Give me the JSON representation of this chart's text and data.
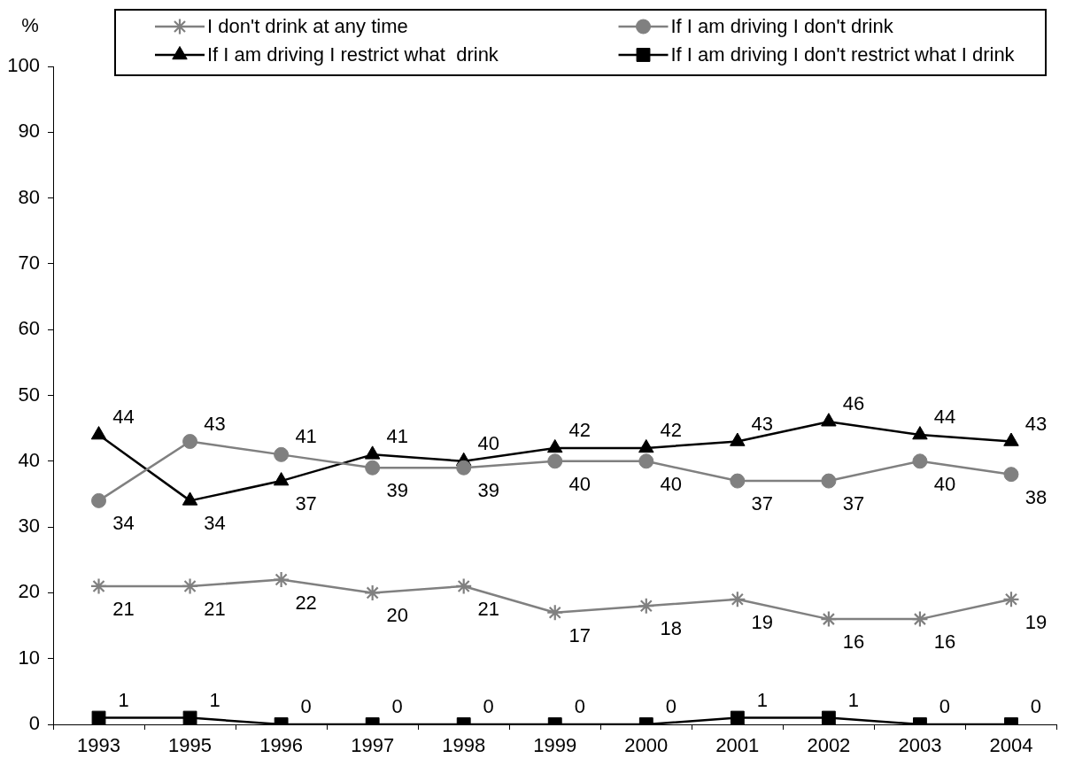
{
  "chart_data": {
    "type": "line",
    "ylabel": "%",
    "categories": [
      "1993",
      "1995",
      "1996",
      "1997",
      "1998",
      "1999",
      "2000",
      "2001",
      "2002",
      "2003",
      "2004"
    ],
    "ylim": [
      0,
      100
    ],
    "yticks": [
      0,
      10,
      20,
      30,
      40,
      50,
      60,
      70,
      80,
      90,
      100
    ],
    "grid": false,
    "legend": "top",
    "data_labels": true,
    "series": [
      {
        "name": "I don't drink at any time",
        "color": "#808080",
        "marker": "cross",
        "values": [
          21,
          21,
          22,
          20,
          21,
          17,
          18,
          19,
          16,
          16,
          19
        ]
      },
      {
        "name": "If I am driving I don't drink",
        "color": "#808080",
        "marker": "circle",
        "values": [
          34,
          43,
          41,
          39,
          39,
          40,
          40,
          37,
          37,
          40,
          38
        ]
      },
      {
        "name": "If I am driving I restrict what  drink",
        "color": "#000000",
        "marker": "triangle",
        "values": [
          44,
          34,
          37,
          41,
          40,
          42,
          42,
          43,
          46,
          44,
          43
        ]
      },
      {
        "name": "If I am driving I don't restrict what I drink",
        "color": "#000000",
        "marker": "square",
        "values": [
          1,
          1,
          0,
          0,
          0,
          0,
          0,
          1,
          1,
          0,
          0
        ]
      }
    ]
  }
}
